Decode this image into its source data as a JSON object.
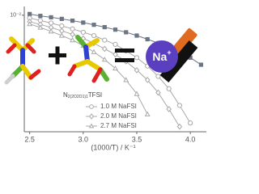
{
  "chart_data": {
    "type": "line",
    "x_label": "(1000/T) / K⁻¹",
    "x": [
      2.5,
      2.6,
      2.7,
      2.8,
      2.9,
      3.0,
      3.1,
      3.2,
      3.3,
      3.4,
      3.5,
      3.6,
      3.7,
      3.8,
      3.9,
      4.0,
      4.1
    ],
    "series": [
      {
        "color": "#6b7583",
        "marker": "square",
        "values": [
          0.011,
          0.0095,
          0.0085,
          0.0075,
          0.0065,
          0.0056,
          0.0047,
          0.0039,
          0.0032,
          0.0026,
          0.002,
          0.0015,
          0.0011,
          0.0008,
          0.00055,
          0.00035,
          0.0002
        ]
      },
      {
        "name": "1.0 M NaFSI",
        "color": "#a8a8a8",
        "marker": "circle",
        "values": [
          0.008,
          0.0066,
          0.0054,
          0.0043,
          0.0034,
          0.0026,
          0.002,
          0.0014,
          0.001,
          0.0006,
          0.00035,
          0.00018,
          8e-05,
          3e-05,
          8e-06,
          2e-06,
          null
        ]
      },
      {
        "name": "2.0 M NaFSI",
        "color": "#a8a8a8",
        "marker": "diamond",
        "values": [
          0.006,
          0.0048,
          0.0038,
          0.0029,
          0.0022,
          0.0016,
          0.0011,
          0.0007,
          0.00045,
          0.00026,
          0.00013,
          6e-05,
          2.2e-05,
          6e-06,
          1.5e-06,
          null,
          null
        ]
      },
      {
        "name": "2.7 M NaFSI",
        "color": "#a8a8a8",
        "marker": "triangle",
        "values": [
          0.005,
          0.0038,
          0.0028,
          0.002,
          0.0014,
          0.0009,
          0.00055,
          0.0003,
          0.00015,
          6e-05,
          2e-05,
          4e-06,
          null,
          null,
          null,
          null,
          null
        ]
      }
    ],
    "xlim": [
      2.45,
      4.15
    ],
    "xticks": [
      2.5,
      {
        "value": 3,
        "label": "3.0"
      },
      3.5,
      {
        "value": 4,
        "label": "4.0"
      }
    ],
    "ylim": [
      1e-06,
      0.02
    ],
    "yticks": [
      {
        "value": 0.01,
        "label": "10⁻²"
      }
    ],
    "log_y": true,
    "legend": "bottom",
    "annotations": {
      "molecule": {
        "base": "N",
        "sub": "2(2O2O1)1",
        "suffix": "TFSI"
      },
      "ion": {
        "base": "Na",
        "sup": "+"
      }
    }
  }
}
